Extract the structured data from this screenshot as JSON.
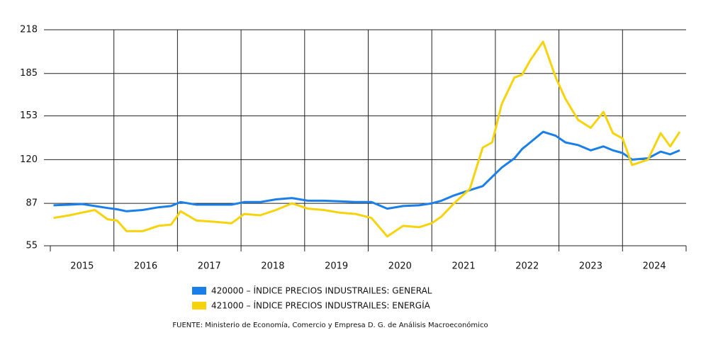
{
  "chart_data": {
    "type": "line",
    "x": [
      2015.05,
      2015.3,
      2015.5,
      2015.7,
      2015.9,
      2016.05,
      2016.2,
      2016.45,
      2016.7,
      2016.9,
      2017.05,
      2017.3,
      2017.6,
      2017.85,
      2018.05,
      2018.3,
      2018.55,
      2018.8,
      2019.05,
      2019.3,
      2019.55,
      2019.8,
      2020.05,
      2020.3,
      2020.55,
      2020.8,
      2021.0,
      2021.15,
      2021.35,
      2021.6,
      2021.8,
      2021.95,
      2022.1,
      2022.3,
      2022.42,
      2022.55,
      2022.75,
      2022.95,
      2023.1,
      2023.3,
      2023.5,
      2023.7,
      2023.85,
      2024.0,
      2024.15,
      2024.4,
      2024.6,
      2024.75,
      2024.9
    ],
    "series": [
      {
        "name": "420000 – ÍNDICE PRECIOS INDUSTRAILES: GENERAL",
        "color": "#1a7fe8",
        "values": [
          85.5,
          86,
          86.5,
          85,
          83.5,
          82.5,
          81,
          82,
          84,
          85,
          88,
          86,
          86,
          86,
          88,
          88,
          90,
          91,
          89,
          89,
          88.5,
          88,
          88,
          83,
          85,
          85.5,
          87,
          89,
          93,
          97,
          100,
          107,
          114,
          121,
          128,
          133,
          141,
          138,
          133,
          131,
          127,
          130,
          127,
          125,
          120,
          121,
          126,
          124,
          127
        ]
      },
      {
        "name": "421000 – ÍNDICE PRECIOS INDUSTRAILES: ENERGÍA",
        "color": "#f7d30c",
        "values": [
          76,
          78,
          80,
          82,
          75,
          74,
          66,
          66,
          70,
          71,
          81,
          74,
          73,
          72,
          79,
          78,
          82,
          87,
          83,
          82,
          80,
          79,
          76,
          62,
          70,
          69,
          72,
          77,
          87,
          98,
          129,
          133,
          162,
          182,
          184,
          195,
          209,
          182,
          166,
          150,
          144,
          156,
          140,
          136,
          116,
          120,
          140,
          130,
          141
        ]
      }
    ],
    "xlim": [
      2015,
      2025
    ],
    "xticks": [
      {
        "value": 2015.5,
        "label": "2015"
      },
      {
        "value": 2016.5,
        "label": "2016"
      },
      {
        "value": 2017.5,
        "label": "2017"
      },
      {
        "value": 2018.5,
        "label": "2018"
      },
      {
        "value": 2019.5,
        "label": "2019"
      },
      {
        "value": 2020.5,
        "label": "2020"
      },
      {
        "value": 2021.5,
        "label": "2021"
      },
      {
        "value": 2022.5,
        "label": "2022"
      },
      {
        "value": 2023.5,
        "label": "2023"
      },
      {
        "value": 2024.5,
        "label": "2024"
      }
    ],
    "ylim": [
      55,
      218
    ],
    "yticks": [
      55,
      87,
      120,
      153,
      185,
      218
    ],
    "grid": true,
    "legend": "bottom",
    "source": "FUENTE: Ministerio de Economía, Comercio y Empresa D. G. de Análisis Macroeconómico"
  }
}
